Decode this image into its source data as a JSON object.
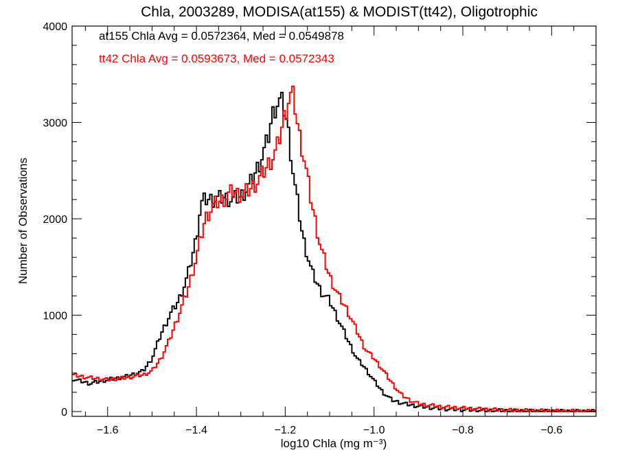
{
  "chart_data": {
    "type": "line",
    "title": "Chla, 2003289, MODISA(at155) & MODIST(tt42), Oligotrophic",
    "xlabel": "log10 Chla (mg m⁻³)",
    "ylabel": "Number of Observations",
    "xlim": [
      -1.68,
      -0.5
    ],
    "ylim": [
      -50,
      4000
    ],
    "xticks": [
      -1.6,
      -1.4,
      -1.2,
      -1.0,
      -0.8,
      -0.6
    ],
    "xtick_labels": [
      "−1.6",
      "−1.4",
      "−1.2",
      "−1.0",
      "−0.8",
      "−0.6"
    ],
    "yticks": [
      0,
      1000,
      2000,
      3000,
      4000
    ],
    "ytick_labels": [
      "0",
      "1000",
      "2000",
      "3000",
      "4000"
    ],
    "grid": false,
    "annotations": [
      {
        "text": "at155 Chla Avg = 0.0572364, Med = 0.0549878",
        "color": "#000000"
      },
      {
        "text": "tt42 Chla Avg = 0.0593673, Med = 0.0572343",
        "color": "#ff0000"
      }
    ],
    "series": [
      {
        "color": "#000000",
        "x": [
          -1.68,
          -1.64,
          -1.6,
          -1.56,
          -1.52,
          -1.5,
          -1.48,
          -1.46,
          -1.44,
          -1.42,
          -1.4,
          -1.39,
          -1.38,
          -1.36,
          -1.34,
          -1.32,
          -1.3,
          -1.28,
          -1.26,
          -1.24,
          -1.23,
          -1.22,
          -1.21,
          -1.2,
          -1.19,
          -1.18,
          -1.16,
          -1.14,
          -1.12,
          -1.1,
          -1.08,
          -1.06,
          -1.04,
          -1.02,
          -1.0,
          -0.98,
          -0.96,
          -0.94,
          -0.92,
          -0.9,
          -0.85,
          -0.8,
          -0.75,
          -0.7,
          -0.65,
          -0.6,
          -0.55,
          -0.5
        ],
        "y": [
          340,
          290,
          330,
          360,
          420,
          550,
          800,
          1000,
          1150,
          1400,
          1800,
          2150,
          2200,
          2200,
          2220,
          2200,
          2230,
          2350,
          2550,
          2800,
          3050,
          3200,
          3220,
          3120,
          2800,
          2400,
          1800,
          1450,
          1250,
          1150,
          950,
          750,
          560,
          450,
          320,
          200,
          120,
          90,
          70,
          55,
          30,
          18,
          12,
          8,
          5,
          3,
          2,
          1
        ]
      },
      {
        "color": "#ff0000",
        "x": [
          -1.68,
          -1.64,
          -1.6,
          -1.56,
          -1.52,
          -1.5,
          -1.48,
          -1.46,
          -1.44,
          -1.42,
          -1.4,
          -1.38,
          -1.36,
          -1.34,
          -1.32,
          -1.3,
          -1.28,
          -1.26,
          -1.24,
          -1.22,
          -1.21,
          -1.2,
          -1.19,
          -1.18,
          -1.17,
          -1.16,
          -1.14,
          -1.12,
          -1.1,
          -1.08,
          -1.06,
          -1.04,
          -1.02,
          -1.0,
          -0.98,
          -0.96,
          -0.94,
          -0.92,
          -0.9,
          -0.85,
          -0.8,
          -0.75,
          -0.7,
          -0.65,
          -0.6,
          -0.55,
          -0.5
        ],
        "y": [
          380,
          350,
          330,
          350,
          380,
          420,
          550,
          750,
          1000,
          1250,
          1600,
          2000,
          2150,
          2200,
          2280,
          2250,
          2300,
          2400,
          2550,
          2700,
          2900,
          3100,
          3280,
          3250,
          2900,
          2700,
          2150,
          1700,
          1400,
          1200,
          1050,
          850,
          650,
          550,
          430,
          300,
          180,
          120,
          80,
          50,
          35,
          22,
          14,
          9,
          6,
          4,
          2
        ]
      }
    ]
  }
}
